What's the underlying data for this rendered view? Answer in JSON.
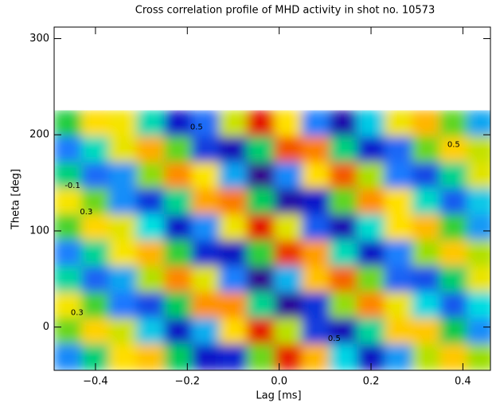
{
  "chart_data": {
    "type": "contour",
    "title": "Cross correlation profile of MHD activity in shot no. 10573",
    "xlabel": "Lag [ms]",
    "ylabel": "Theta [deg]",
    "xlim": [
      -0.49,
      0.46
    ],
    "ylim": [
      -45,
      312
    ],
    "xticks": [
      {
        "value": -0.4,
        "label": "−0.4"
      },
      {
        "value": -0.2,
        "label": "−0.2"
      },
      {
        "value": 0,
        "label": "0.0"
      },
      0.2,
      0.4
    ],
    "yticks": [
      0,
      100,
      200,
      300
    ],
    "zlim": [
      -1,
      1
    ],
    "colors": [
      "#3c0082",
      "#0a14c8",
      "#1e78ff",
      "#00e0e0",
      "#00c850",
      "#a8e000",
      "#ffe400",
      "#ff8c00",
      "#e00000"
    ],
    "x": [
      -0.46,
      -0.4,
      -0.34,
      -0.28,
      -0.22,
      -0.16,
      -0.1,
      -0.04,
      0.02,
      0.08,
      0.14,
      0.2,
      0.26,
      0.32,
      0.38,
      0.44
    ],
    "y": [
      211.5,
      184.5,
      157.5,
      130.5,
      103.5,
      76.5,
      49.5,
      22.5,
      -4.5,
      -31.5
    ],
    "z": [
      [
        0.05,
        0.52,
        0.47,
        -0.17,
        -0.74,
        -0.53,
        0.35,
        0.96,
        0.51,
        -0.48,
        -0.85,
        -0.3,
        0.46,
        0.63,
        0.14,
        -0.39
      ],
      [
        -0.49,
        -0.19,
        0.43,
        0.66,
        0.14,
        -0.65,
        -0.81,
        -0.05,
        0.85,
        0.77,
        -0.08,
        -0.73,
        -0.54,
        0.16,
        0.56,
        0.33
      ],
      [
        -0.08,
        -0.53,
        -0.44,
        0.21,
        0.75,
        0.49,
        -0.39,
        -0.96,
        -0.46,
        0.52,
        0.84,
        0.26,
        -0.49,
        -0.62,
        -0.11,
        0.41
      ],
      [
        0.48,
        0.16,
        -0.45,
        -0.66,
        -0.11,
        0.68,
        0.78,
        -0.02,
        -0.87,
        -0.74,
        0.14,
        0.74,
        0.51,
        -0.2,
        -0.57,
        -0.31
      ],
      [
        0.11,
        0.54,
        0.42,
        -0.25,
        -0.75,
        -0.45,
        0.45,
        0.96,
        0.41,
        -0.57,
        -0.83,
        -0.22,
        0.51,
        0.62,
        0.08,
        -0.42
      ],
      [
        -0.48,
        -0.12,
        0.48,
        0.64,
        0.07,
        -0.7,
        -0.77,
        0.07,
        0.9,
        0.7,
        -0.18,
        -0.76,
        -0.48,
        0.23,
        0.58,
        0.28
      ],
      [
        -0.14,
        -0.55,
        -0.39,
        0.28,
        0.76,
        0.41,
        -0.48,
        -0.95,
        -0.36,
        0.6,
        0.82,
        0.17,
        -0.55,
        -0.6,
        -0.05,
        0.44
      ],
      [
        0.47,
        0.1,
        -0.5,
        -0.62,
        -0.02,
        0.73,
        0.74,
        -0.11,
        -0.92,
        -0.67,
        0.22,
        0.76,
        0.45,
        -0.27,
        -0.58,
        -0.26
      ],
      [
        0.16,
        0.55,
        0.36,
        -0.31,
        -0.76,
        -0.37,
        0.53,
        0.95,
        0.3,
        -0.65,
        -0.81,
        -0.13,
        0.57,
        0.58,
        0.01,
        -0.45
      ],
      [
        -0.46,
        -0.07,
        0.52,
        0.6,
        -0.02,
        -0.75,
        -0.71,
        0.16,
        0.94,
        0.63,
        -0.28,
        -0.77,
        -0.42,
        0.29,
        0.58,
        0.23
      ]
    ],
    "contour_labels": [
      {
        "x": -0.18,
        "y": 208,
        "label": "0.5"
      },
      {
        "x": 0.38,
        "y": 190,
        "label": "0.5"
      },
      {
        "x": -0.45,
        "y": 147,
        "label": "-0.1"
      },
      {
        "x": -0.42,
        "y": 120,
        "label": "0.3"
      },
      {
        "x": 0.12,
        "y": -12,
        "label": "0.5"
      },
      {
        "x": -0.44,
        "y": 15,
        "label": "0.3"
      }
    ]
  }
}
